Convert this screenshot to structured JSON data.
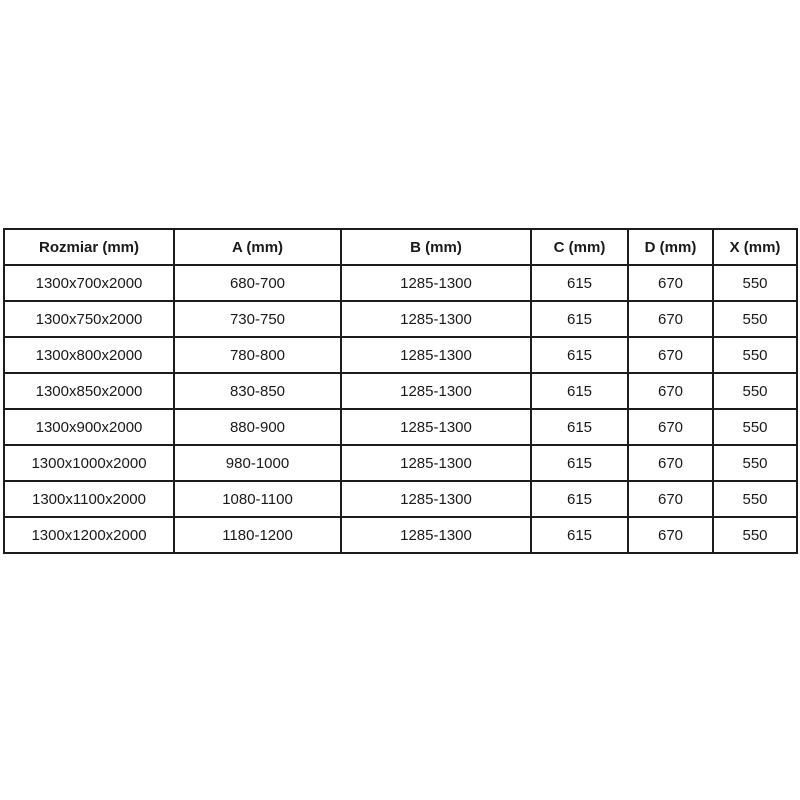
{
  "table": {
    "headers": [
      "Rozmiar (mm)",
      "A (mm)",
      "B (mm)",
      "C (mm)",
      "D (mm)",
      "X (mm)"
    ],
    "rows": [
      [
        "1300x700x2000",
        "680-700",
        "1285-1300",
        "615",
        "670",
        "550"
      ],
      [
        "1300x750x2000",
        "730-750",
        "1285-1300",
        "615",
        "670",
        "550"
      ],
      [
        "1300x800x2000",
        "780-800",
        "1285-1300",
        "615",
        "670",
        "550"
      ],
      [
        "1300x850x2000",
        "830-850",
        "1285-1300",
        "615",
        "670",
        "550"
      ],
      [
        "1300x900x2000",
        "880-900",
        "1285-1300",
        "615",
        "670",
        "550"
      ],
      [
        "1300x1000x2000",
        "980-1000",
        "1285-1300",
        "615",
        "670",
        "550"
      ],
      [
        "1300x1100x2000",
        "1080-1100",
        "1285-1300",
        "615",
        "670",
        "550"
      ],
      [
        "1300x1200x2000",
        "1180-1200",
        "1285-1300",
        "615",
        "670",
        "550"
      ]
    ]
  },
  "colors": {
    "border": "#1c1c1c",
    "background": "#ffffff",
    "text": "#1a1a1a"
  }
}
